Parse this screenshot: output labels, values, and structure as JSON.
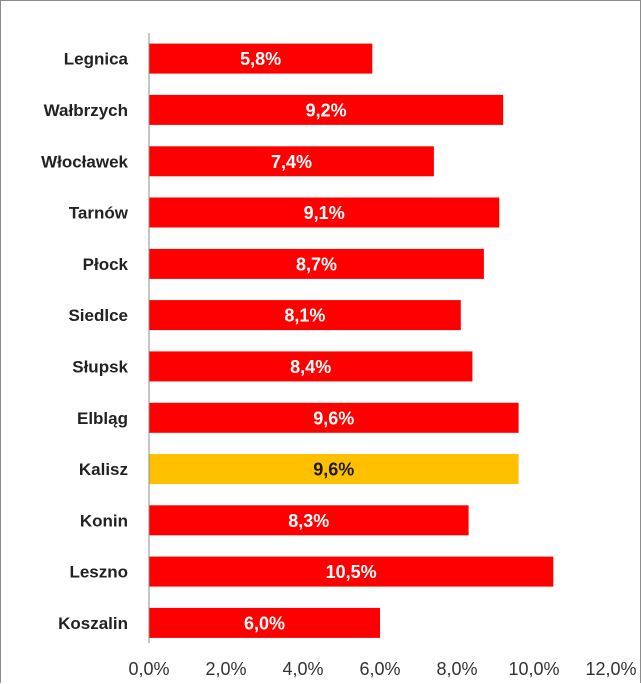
{
  "chart_data": {
    "type": "bar",
    "orientation": "horizontal",
    "categories": [
      "Legnica",
      "Wałbrzych",
      "Włocławek",
      "Tarnów",
      "Płock",
      "Siedlce",
      "Słupsk",
      "Elbląg",
      "Kalisz",
      "Konin",
      "Leszno",
      "Koszalin"
    ],
    "values": [
      5.8,
      9.2,
      7.4,
      9.1,
      8.7,
      8.1,
      8.4,
      9.6,
      9.6,
      8.3,
      10.5,
      6.0
    ],
    "labels": [
      "5,8%",
      "9,2%",
      "7,4%",
      "9,1%",
      "8,7%",
      "8,1%",
      "8,4%",
      "9,6%",
      "9,6%",
      "8,3%",
      "10,5%",
      "6,0%"
    ],
    "xlim": [
      0,
      12
    ],
    "xticks": [
      "0,0%",
      "2,0%",
      "4,0%",
      "6,0%",
      "8,0%",
      "10,0%",
      "12,0%"
    ],
    "title": "",
    "xlabel": "",
    "ylabel": "",
    "grid": false,
    "colors": {
      "bar": "#ff0000",
      "highlight": "#ffc000",
      "label_on_bar": "#ffffff",
      "label_on_highlight": "#1a1a1a"
    },
    "highlight_category": "Kalisz"
  }
}
